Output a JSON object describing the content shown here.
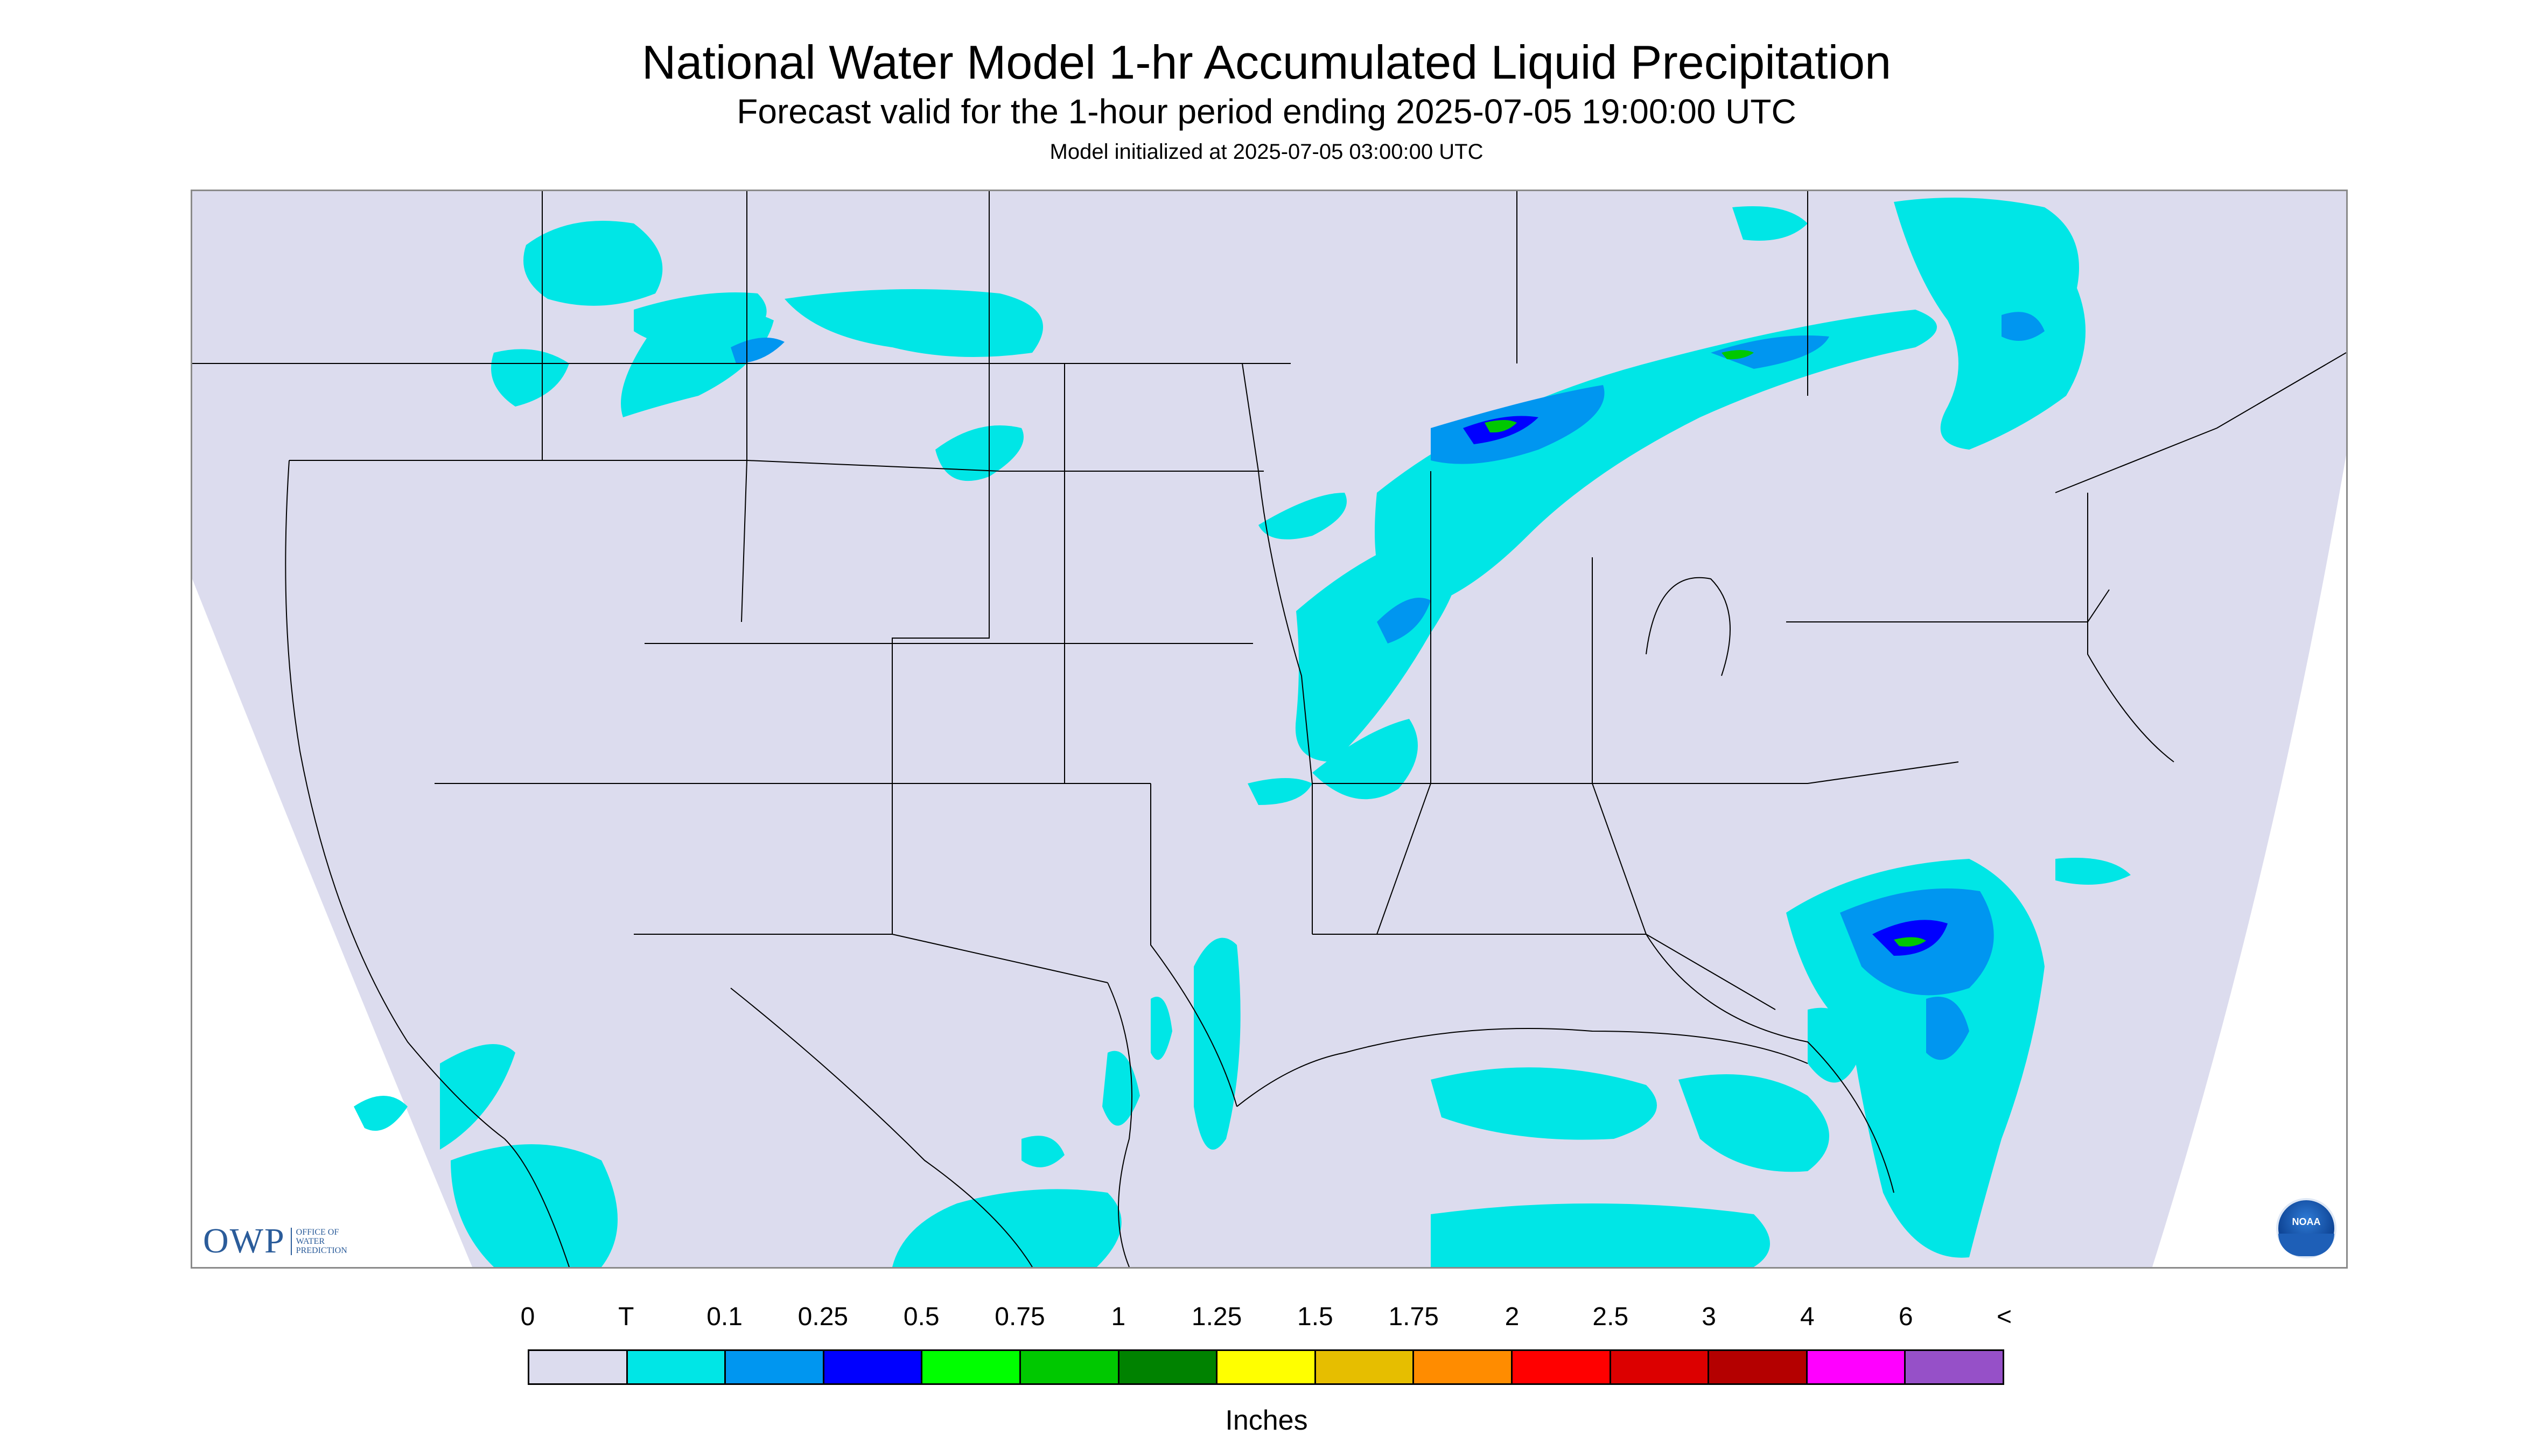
{
  "header": {
    "title": "National Water Model 1-hr Accumulated Liquid Precipitation",
    "subtitle": "Forecast valid for the 1-hour period ending 2025-07-05 19:00:00 UTC",
    "init": "Model initialized at 2025-07-05 03:00:00 UTC"
  },
  "logos": {
    "owp_mark": "OWP",
    "owp_sub": "OFFICE OF\nWATER\nPREDICTION",
    "noaa": "NOAA"
  },
  "legend": {
    "labels": [
      "0",
      "T",
      "0.1",
      "0.25",
      "0.5",
      "0.75",
      "1",
      "1.25",
      "1.5",
      "1.75",
      "2",
      "2.5",
      "3",
      "4",
      "6",
      "<"
    ],
    "colors": [
      "#dcdcee",
      "#00e6e6",
      "#0096f0",
      "#0000ff",
      "#00ff00",
      "#00c800",
      "#008200",
      "#ffff00",
      "#e6be00",
      "#ff8c00",
      "#ff0000",
      "#dc0000",
      "#b40000",
      "#ff00ff",
      "#9650c8"
    ],
    "units": "Inches"
  },
  "map": {
    "background_color": "#dcdcee",
    "outside_color": "#ffffff",
    "boundary_color": "#000000"
  }
}
